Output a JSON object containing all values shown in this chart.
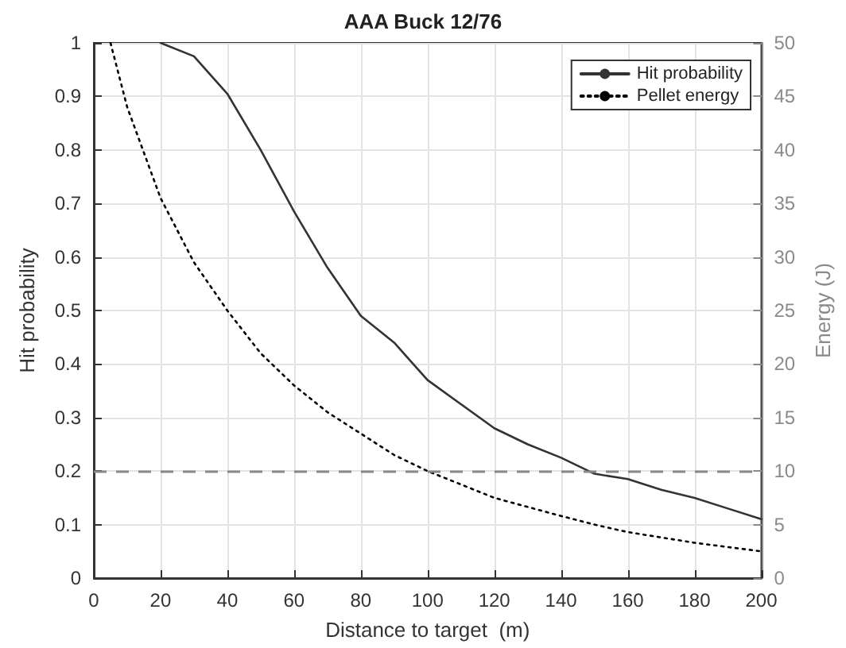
{
  "chart_data": {
    "type": "line",
    "title": "AAA Buck 12/76",
    "xlabel": "Distance to target  (m)",
    "ylabel": "Hit probability",
    "y2label": "Energy (J)",
    "xlim": [
      0,
      200
    ],
    "xticks": [
      0,
      20,
      40,
      60,
      80,
      100,
      120,
      140,
      160,
      180,
      200
    ],
    "ylim": [
      0,
      1
    ],
    "yticks": [
      0,
      0.1,
      0.2,
      0.3,
      0.4,
      0.5,
      0.6,
      0.7,
      0.8,
      0.9,
      1
    ],
    "y2lim": [
      0,
      50
    ],
    "y2ticks": [
      0,
      5,
      10,
      15,
      20,
      25,
      30,
      35,
      40,
      45,
      50
    ],
    "grid": true,
    "legend": "top right",
    "marker": "none",
    "series": [
      {
        "name": "Hit probability",
        "color": "#333333",
        "line_style": "solid",
        "x": [
          20,
          30,
          40,
          50,
          60,
          70,
          80,
          90,
          100,
          110,
          120,
          130,
          140,
          150,
          160,
          170,
          180,
          190,
          200
        ],
        "values": [
          1.0,
          0.975,
          0.905,
          0.8,
          0.685,
          0.58,
          0.49,
          0.44,
          0.37,
          0.325,
          0.28,
          0.25,
          0.225,
          0.195,
          0.185,
          0.165,
          0.15,
          0.13,
          0.11
        ]
      },
      {
        "name": "Pellet energy",
        "color": "#000000",
        "line_style": "dotted",
        "axis": "y2",
        "x": [
          5,
          10,
          20,
          30,
          40,
          50,
          60,
          70,
          80,
          90,
          100,
          120,
          140,
          150,
          160,
          180,
          200
        ],
        "values": [
          50,
          44,
          35.5,
          29.5,
          25,
          21,
          18,
          15.5,
          13.5,
          11.5,
          10,
          7.5,
          5.8,
          5,
          4.3,
          3.3,
          2.5
        ]
      }
    ],
    "ref_lines": [
      {
        "axis": "y",
        "value": 0.2,
        "color": "#888888",
        "line_style": "dashed"
      }
    ]
  }
}
